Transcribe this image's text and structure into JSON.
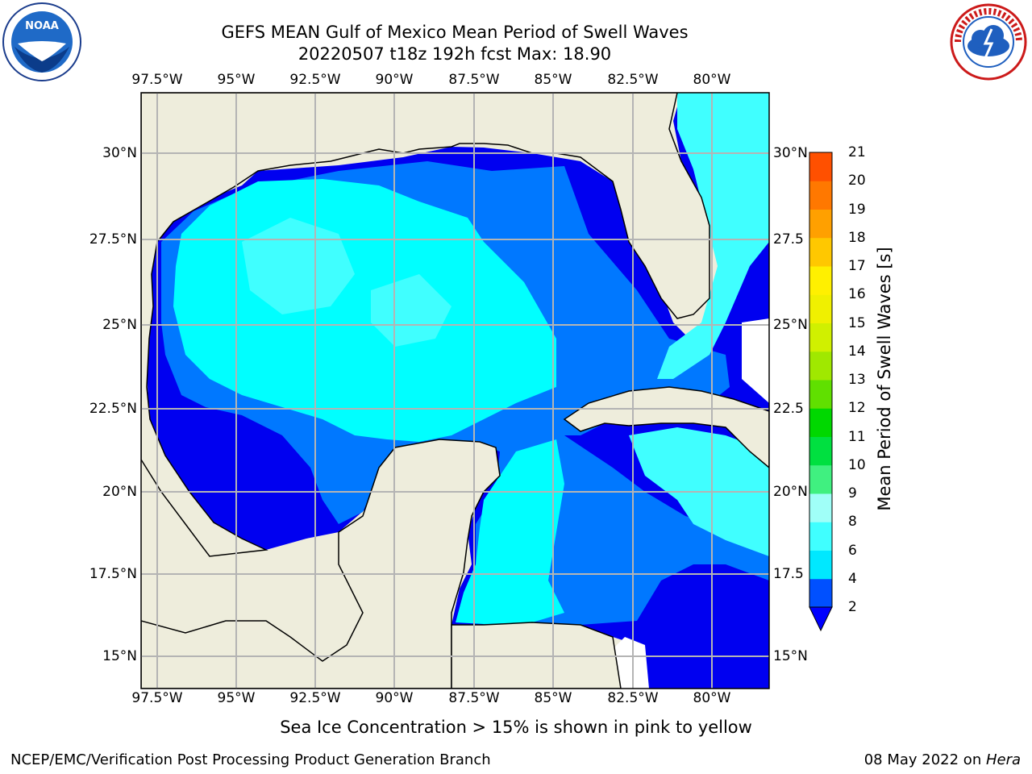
{
  "header": {
    "title_line1": "GEFS MEAN Gulf of Mexico Mean Period of Swell Waves",
    "title_line2": "20220507 t18z 192h fcst   Max: 18.90"
  },
  "logos": {
    "left": "noaa-logo",
    "right": "national-weather-service-logo"
  },
  "map": {
    "lon_labels": [
      "97.5°W",
      "95°W",
      "92.5°W",
      "90°W",
      "87.5°W",
      "85°W",
      "82.5°W",
      "80°W"
    ],
    "lat_labels_left": [
      "30°N",
      "27.5°N",
      "25°N",
      "22.5°N",
      "20°N",
      "17.5°N",
      "15°N"
    ],
    "lat_labels_right": [
      "30°N",
      "27.5",
      "25°N",
      "22.5",
      "20°N",
      "17.5",
      "15°N"
    ],
    "land_color": "#eeeddc",
    "grid_color": "#b4b4b4"
  },
  "colorbar": {
    "label": "Mean Period of Swell Waves [s]",
    "ticks": [
      "2",
      "4",
      "6",
      "8",
      "9",
      "10",
      "11",
      "12",
      "13",
      "14",
      "15",
      "16",
      "17",
      "18",
      "19",
      "20",
      "21"
    ],
    "colors": [
      "#0050ff",
      "#00e8ff",
      "#40ffff",
      "#a0fff8",
      "#40f080",
      "#00e040",
      "#00d800",
      "#60e000",
      "#a0e800",
      "#d0f000",
      "#f0f000",
      "#fff000",
      "#ffc800",
      "#ffa000",
      "#ff7800",
      "#ff5000",
      "#ff2800",
      "#ff0000"
    ],
    "underflow_color": "#0000ff"
  },
  "caption": "Sea Ice Concentration > 15% is shown in pink to yellow",
  "footer": {
    "left": "NCEP/EMC/Verification Post Processing Product Generation Branch",
    "date": "08 May 2022 on ",
    "host": "Hera"
  }
}
